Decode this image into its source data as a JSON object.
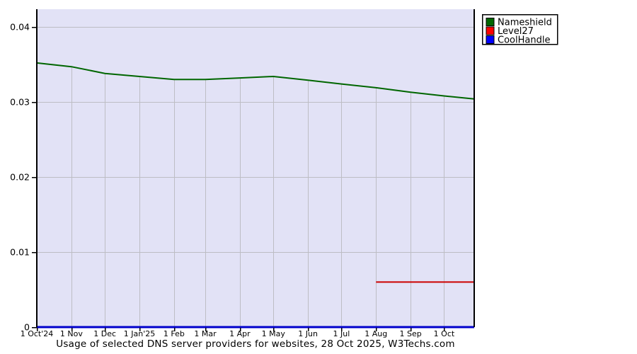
{
  "chart_data": {
    "type": "line",
    "title": "Usage of selected DNS server providers for websites, 28 Oct 2025, W3Techs.com",
    "xlabel": "",
    "ylabel": "",
    "ylim": [
      0,
      0.04
    ],
    "x_range_days": 392,
    "grid": true,
    "legend_position": "outside-top-right",
    "plot_bg_color": "#e2e2f6",
    "gridline_color": "#bdbdc4",
    "axis_color": "#000000",
    "legend_border_color": "#000000",
    "legend_bg_color": "#ffffff",
    "y_ticks": [
      {
        "label": "0.04",
        "value": 0.04
      },
      {
        "label": "0.03",
        "value": 0.03
      },
      {
        "label": "0.02",
        "value": 0.02
      },
      {
        "label": "0.01",
        "value": 0.01
      },
      {
        "label": "0",
        "value": 0
      }
    ],
    "x_ticks": [
      {
        "label": "1 Oct'24",
        "day": 0
      },
      {
        "label": "1 Nov",
        "day": 31
      },
      {
        "label": "1 Dec",
        "day": 61
      },
      {
        "label": "1 Jan'25",
        "day": 92
      },
      {
        "label": "1 Feb",
        "day": 123
      },
      {
        "label": "1 Mar",
        "day": 151
      },
      {
        "label": "1 Apr",
        "day": 182
      },
      {
        "label": "1 May",
        "day": 212
      },
      {
        "label": "1 Jun",
        "day": 243
      },
      {
        "label": "1 Jul",
        "day": 273
      },
      {
        "label": "1 Aug",
        "day": 304
      },
      {
        "label": "1 Sep",
        "day": 335
      },
      {
        "label": "1 Oct",
        "day": 365
      }
    ],
    "series": [
      {
        "name": "Nameshield",
        "line_color": "#006600",
        "legend_color": "#006600",
        "points": [
          {
            "day": 0,
            "value": 0.0352
          },
          {
            "day": 31,
            "value": 0.0347
          },
          {
            "day": 61,
            "value": 0.0338
          },
          {
            "day": 92,
            "value": 0.0334
          },
          {
            "day": 123,
            "value": 0.033
          },
          {
            "day": 151,
            "value": 0.033
          },
          {
            "day": 182,
            "value": 0.0332
          },
          {
            "day": 212,
            "value": 0.0334
          },
          {
            "day": 243,
            "value": 0.0329
          },
          {
            "day": 273,
            "value": 0.0324
          },
          {
            "day": 304,
            "value": 0.0319
          },
          {
            "day": 335,
            "value": 0.0313
          },
          {
            "day": 365,
            "value": 0.0308
          },
          {
            "day": 392,
            "value": 0.0304
          }
        ]
      },
      {
        "name": "Level27",
        "line_color": "#cc0000",
        "legend_color": "#ff0000",
        "points": [
          {
            "day": 304,
            "value": 0.006
          },
          {
            "day": 392,
            "value": 0.006
          }
        ]
      },
      {
        "name": "CoolHandle",
        "line_color": "#0000cc",
        "legend_color": "#0000ff",
        "points": [
          {
            "day": 0,
            "value": 0
          },
          {
            "day": 392,
            "value": 0
          }
        ]
      }
    ]
  }
}
